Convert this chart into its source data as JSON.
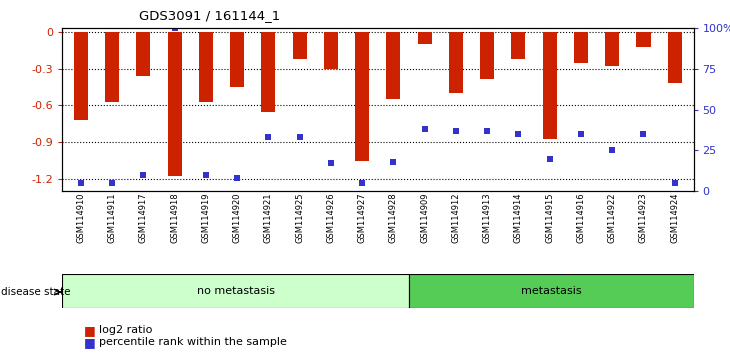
{
  "title": "GDS3091 / 161144_1",
  "samples": [
    "GSM114910",
    "GSM114911",
    "GSM114917",
    "GSM114918",
    "GSM114919",
    "GSM114920",
    "GSM114921",
    "GSM114925",
    "GSM114926",
    "GSM114927",
    "GSM114928",
    "GSM114909",
    "GSM114912",
    "GSM114913",
    "GSM114914",
    "GSM114915",
    "GSM114916",
    "GSM114922",
    "GSM114923",
    "GSM114924"
  ],
  "log2_ratio": [
    -0.72,
    -0.57,
    -0.36,
    -1.18,
    -0.57,
    -0.45,
    -0.65,
    -0.22,
    -0.3,
    -1.05,
    -0.55,
    -0.1,
    -0.5,
    -0.38,
    -0.22,
    -0.87,
    -0.25,
    -0.28,
    -0.12,
    -0.42
  ],
  "percentile_rank": [
    5,
    5,
    10,
    100,
    10,
    8,
    33,
    33,
    17,
    5,
    18,
    38,
    37,
    37,
    35,
    20,
    35,
    25,
    35,
    5
  ],
  "no_metastasis_count": 11,
  "metastasis_count": 9,
  "bar_color": "#cc2200",
  "dot_color": "#3333cc",
  "no_meta_bg": "#ccffcc",
  "meta_bg": "#55cc55",
  "ylim_left": [
    -1.3,
    0.03
  ],
  "ylim_right": [
    0,
    100
  ],
  "yticks_left": [
    0,
    -0.3,
    -0.6,
    -0.9,
    -1.2
  ],
  "yticks_right": [
    0,
    25,
    50,
    75,
    100
  ],
  "grid_color": "#000000",
  "plot_bg": "#ffffff",
  "outer_bg": "#ffffff",
  "legend_log2": "log2 ratio",
  "legend_pct": "percentile rank within the sample"
}
